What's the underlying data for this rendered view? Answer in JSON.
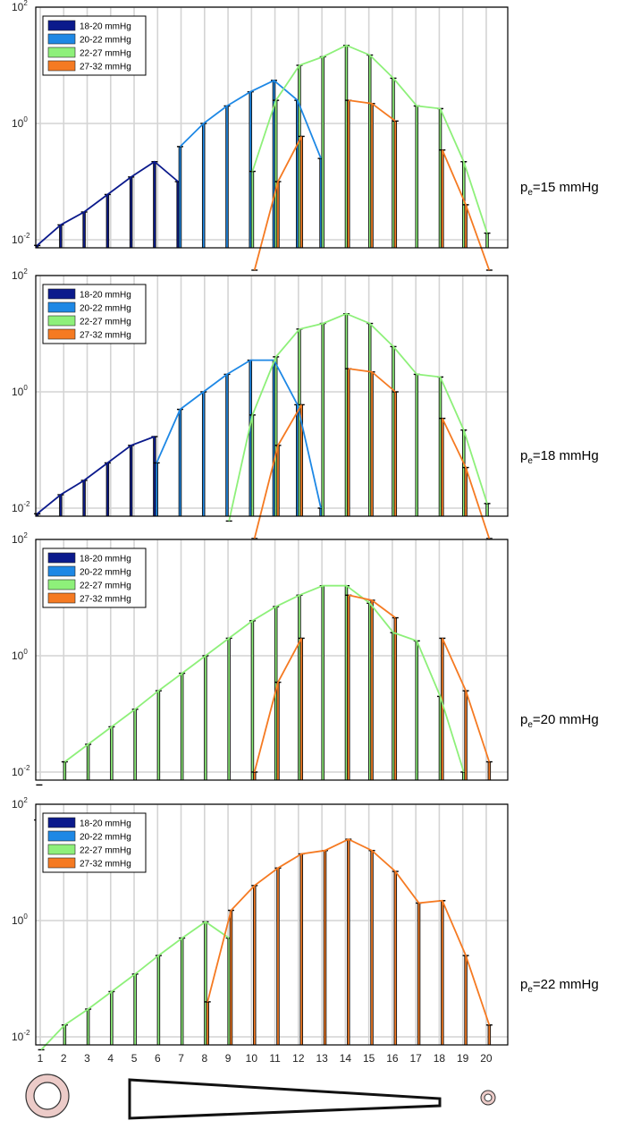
{
  "figure": {
    "x_ticks": [
      "1",
      "2",
      "3",
      "4",
      "5",
      "6",
      "7",
      "8",
      "9",
      "10",
      "11",
      "12",
      "13",
      "14",
      "15",
      "16",
      "17",
      "18",
      "19",
      "20"
    ],
    "y_ticks": [
      {
        "base": "10",
        "exp": "2",
        "value": 100
      },
      {
        "base": "10",
        "exp": "0",
        "value": 1
      },
      {
        "base": "10",
        "exp": "-2",
        "value": 0.01
      }
    ],
    "legend_position": "top-left",
    "schematic": [
      "large-vessel-ring-icon",
      "tapering-vessel-wedge-icon",
      "small-vessel-ring-icon"
    ]
  },
  "colors": {
    "series": [
      "#0b1a8c",
      "#1e88e5",
      "#8ef07a",
      "#f57a22"
    ],
    "bar_edge": "#111111",
    "grid": "#d4d4d4",
    "ring_fill": "#eccbc8",
    "ring_stroke": "#333333"
  },
  "chart_data": [
    {
      "type": "bar",
      "y_scale": "log",
      "ylim": [
        0.0005,
        100
      ],
      "grid": true,
      "legend": "top-left",
      "panel_label": {
        "p": "p",
        "sub": "e",
        "rest": "=15 mmHg"
      },
      "categories": [
        1,
        2,
        3,
        4,
        5,
        6,
        7,
        8,
        9,
        10,
        11,
        12,
        13,
        14,
        15,
        16,
        17,
        18,
        19,
        20
      ],
      "series": [
        {
          "name": "18-20 mmHg",
          "values": [
            0.008,
            0.018,
            0.03,
            0.06,
            0.12,
            0.22,
            0.1,
            null,
            null,
            null,
            null,
            null,
            null,
            null,
            null,
            null,
            null,
            null,
            null,
            null
          ]
        },
        {
          "name": "20-22 mmHg",
          "values": [
            null,
            null,
            null,
            null,
            null,
            null,
            0.4,
            1.0,
            2.0,
            3.5,
            5.5,
            2.5,
            0.25,
            null,
            null,
            null,
            null,
            null,
            null,
            null
          ]
        },
        {
          "name": "22-27 mmHg",
          "values": [
            null,
            null,
            null,
            null,
            null,
            null,
            null,
            null,
            null,
            0.15,
            2.5,
            10,
            14,
            22,
            15,
            6,
            2,
            1.8,
            0.22,
            0.013
          ]
        },
        {
          "name": "27-32 mmHg",
          "values": [
            null,
            null,
            null,
            null,
            null,
            null,
            null,
            null,
            null,
            0.003,
            0.1,
            0.6,
            null,
            2.5,
            2.2,
            1.1,
            null,
            0.35,
            0.04,
            0.003
          ]
        }
      ]
    },
    {
      "type": "bar",
      "y_scale": "log",
      "ylim": [
        0.0005,
        100
      ],
      "grid": true,
      "legend": "top-left",
      "panel_label": {
        "p": "p",
        "sub": "e",
        "rest": "=18 mmHg"
      },
      "categories": [
        1,
        2,
        3,
        4,
        5,
        6,
        7,
        8,
        9,
        10,
        11,
        12,
        13,
        14,
        15,
        16,
        17,
        18,
        19,
        20
      ],
      "series": [
        {
          "name": "18-20 mmHg",
          "values": [
            0.008,
            0.017,
            0.03,
            0.06,
            0.12,
            0.17,
            null,
            null,
            null,
            null,
            null,
            null,
            null,
            null,
            null,
            null,
            null,
            null,
            null,
            null
          ]
        },
        {
          "name": "20-22 mmHg",
          "values": [
            null,
            null,
            null,
            null,
            null,
            0.06,
            0.5,
            1.0,
            2.0,
            3.5,
            3.5,
            0.6,
            0.01,
            null,
            null,
            null,
            null,
            null,
            null,
            null
          ]
        },
        {
          "name": "22-27 mmHg",
          "values": [
            null,
            null,
            null,
            null,
            null,
            null,
            null,
            null,
            0.006,
            0.4,
            4.0,
            12,
            15,
            22,
            15,
            6,
            2,
            1.8,
            0.22,
            0.012
          ]
        },
        {
          "name": "27-32 mmHg",
          "values": [
            null,
            null,
            null,
            null,
            null,
            null,
            null,
            null,
            null,
            0.003,
            0.12,
            0.6,
            null,
            2.5,
            2.2,
            1.0,
            null,
            0.35,
            0.05,
            0.003
          ]
        }
      ]
    },
    {
      "type": "bar",
      "y_scale": "log",
      "ylim": [
        0.0005,
        100
      ],
      "grid": true,
      "legend": "top-left",
      "panel_label": {
        "p": "p",
        "sub": "e",
        "rest": "=20 mmHg"
      },
      "categories": [
        1,
        2,
        3,
        4,
        5,
        6,
        7,
        8,
        9,
        10,
        11,
        12,
        13,
        14,
        15,
        16,
        17,
        18,
        19,
        20
      ],
      "series": [
        {
          "name": "18-20 mmHg",
          "values": [
            0.0015,
            null,
            null,
            null,
            null,
            null,
            null,
            null,
            null,
            null,
            null,
            null,
            null,
            null,
            null,
            null,
            null,
            null,
            null,
            null
          ]
        },
        {
          "name": "20-22 mmHg",
          "values": [
            0.006,
            null,
            null,
            null,
            null,
            null,
            null,
            null,
            null,
            null,
            null,
            null,
            null,
            null,
            null,
            null,
            null,
            null,
            null,
            null
          ]
        },
        {
          "name": "22-27 mmHg",
          "values": [
            null,
            0.015,
            0.03,
            0.06,
            0.12,
            0.25,
            0.5,
            1.0,
            2.0,
            4.0,
            7.0,
            11,
            16,
            16,
            8,
            2.5,
            1.8,
            0.2,
            0.01,
            null
          ]
        },
        {
          "name": "27-32 mmHg",
          "values": [
            null,
            null,
            null,
            null,
            null,
            null,
            null,
            null,
            null,
            0.01,
            0.35,
            2.0,
            null,
            11,
            9,
            4.5,
            null,
            2.0,
            0.25,
            0.015
          ]
        }
      ]
    },
    {
      "type": "bar",
      "y_scale": "log",
      "ylim": [
        0.0005,
        100
      ],
      "grid": true,
      "legend": "top-left",
      "panel_label": {
        "p": "p",
        "sub": "e",
        "rest": "=22 mmHg"
      },
      "categories": [
        1,
        2,
        3,
        4,
        5,
        6,
        7,
        8,
        9,
        10,
        11,
        12,
        13,
        14,
        15,
        16,
        17,
        18,
        19,
        20
      ],
      "series": [
        {
          "name": "18-20 mmHg",
          "values": [
            null,
            null,
            null,
            null,
            null,
            null,
            null,
            null,
            null,
            null,
            null,
            null,
            null,
            null,
            null,
            null,
            null,
            null,
            null,
            null
          ]
        },
        {
          "name": "20-22 mmHg",
          "values": [
            0.0015,
            null,
            null,
            null,
            null,
            null,
            null,
            null,
            null,
            null,
            null,
            null,
            null,
            null,
            null,
            null,
            null,
            null,
            null,
            null
          ]
        },
        {
          "name": "22-27 mmHg",
          "values": [
            0.006,
            0.016,
            0.03,
            0.06,
            0.12,
            0.25,
            0.5,
            0.95,
            0.5,
            null,
            null,
            null,
            null,
            null,
            null,
            null,
            null,
            null,
            null,
            null
          ]
        },
        {
          "name": "27-32 mmHg",
          "values": [
            null,
            null,
            null,
            null,
            null,
            null,
            null,
            0.04,
            1.5,
            4.0,
            8,
            14,
            16,
            25,
            16,
            7,
            2,
            2.2,
            0.25,
            0.016
          ]
        }
      ]
    }
  ]
}
